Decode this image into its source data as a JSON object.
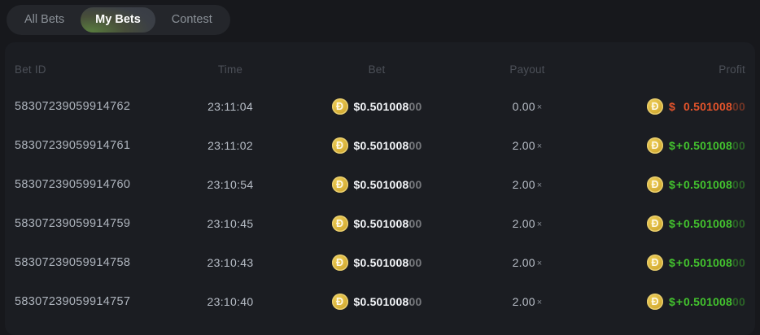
{
  "tabs": {
    "items": [
      {
        "label": "All Bets",
        "active": false
      },
      {
        "label": "My Bets",
        "active": true
      },
      {
        "label": "Contest",
        "active": false
      }
    ]
  },
  "table": {
    "headers": [
      "Bet ID",
      "Time",
      "Bet",
      "Payout",
      "Profit"
    ],
    "rows": [
      {
        "bet_id": "58307239059914762",
        "time": "23:11:04",
        "bet_currency": "$",
        "bet_main": "0.501008",
        "bet_dim": "00",
        "payout": "0.00",
        "payout_multiplier_symbol": "×",
        "profit_currency": "$",
        "profit_sign": "",
        "profit_main": "0.501008",
        "profit_dim": "00",
        "profit_type": "loss"
      },
      {
        "bet_id": "58307239059914761",
        "time": "23:11:02",
        "bet_currency": "$",
        "bet_main": "0.501008",
        "bet_dim": "00",
        "payout": "2.00",
        "payout_multiplier_symbol": "×",
        "profit_currency": "$",
        "profit_sign": "+",
        "profit_main": "0.501008",
        "profit_dim": "00",
        "profit_type": "win"
      },
      {
        "bet_id": "58307239059914760",
        "time": "23:10:54",
        "bet_currency": "$",
        "bet_main": "0.501008",
        "bet_dim": "00",
        "payout": "2.00",
        "payout_multiplier_symbol": "×",
        "profit_currency": "$",
        "profit_sign": "+",
        "profit_main": "0.501008",
        "profit_dim": "00",
        "profit_type": "win"
      },
      {
        "bet_id": "58307239059914759",
        "time": "23:10:45",
        "bet_currency": "$",
        "bet_main": "0.501008",
        "bet_dim": "00",
        "payout": "2.00",
        "payout_multiplier_symbol": "×",
        "profit_currency": "$",
        "profit_sign": "+",
        "profit_main": "0.501008",
        "profit_dim": "00",
        "profit_type": "win"
      },
      {
        "bet_id": "58307239059914758",
        "time": "23:10:43",
        "bet_currency": "$",
        "bet_main": "0.501008",
        "bet_dim": "00",
        "payout": "2.00",
        "payout_multiplier_symbol": "×",
        "profit_currency": "$",
        "profit_sign": "+",
        "profit_main": "0.501008",
        "profit_dim": "00",
        "profit_type": "win"
      },
      {
        "bet_id": "58307239059914757",
        "time": "23:10:40",
        "bet_currency": "$",
        "bet_main": "0.501008",
        "bet_dim": "00",
        "payout": "2.00",
        "payout_multiplier_symbol": "×",
        "profit_currency": "$",
        "profit_sign": "+",
        "profit_main": "0.501008",
        "profit_dim": "00",
        "profit_type": "win"
      }
    ]
  },
  "icons": {
    "dogecoin_glyph": "Đ"
  },
  "colors": {
    "win_green": "#43c32e",
    "loss_orange": "#e5542b",
    "coin_gold": "#d9b236",
    "active_tab_green": "#587b3e",
    "panel_bg": "#1b1d22",
    "page_bg": "#17181c"
  }
}
